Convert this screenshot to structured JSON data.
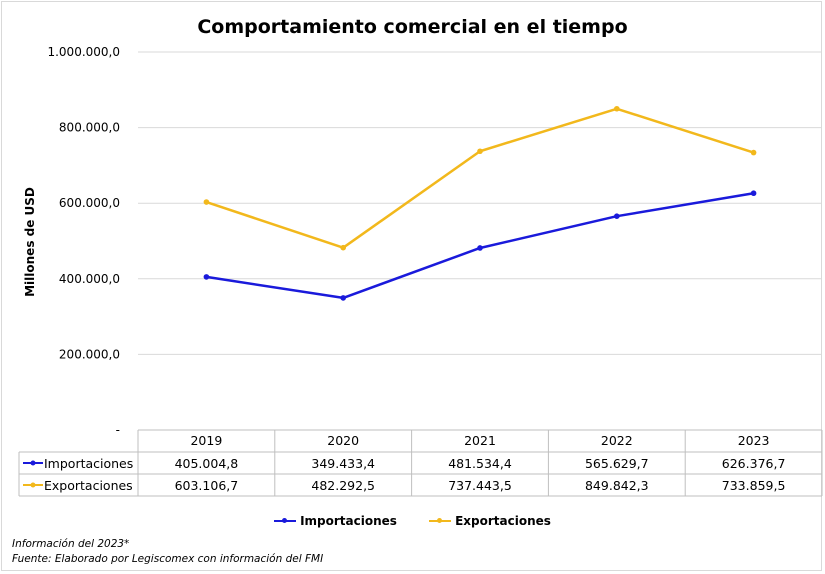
{
  "chart_data": {
    "type": "line",
    "title": "Comportamiento comercial en el tiempo",
    "ylabel": "Millones de USD",
    "xlabel": "",
    "ylim": [
      0,
      1000000
    ],
    "y_ticks": [
      {
        "value": 0,
        "label": "-"
      },
      {
        "value": 200000,
        "label": "200.000,0"
      },
      {
        "value": 400000,
        "label": "400.000,0"
      },
      {
        "value": 600000,
        "label": "600.000,0"
      },
      {
        "value": 800000,
        "label": "800.000,0"
      },
      {
        "value": 1000000,
        "label": "1.000.000,0"
      }
    ],
    "categories": [
      "2019",
      "2020",
      "2021",
      "2022",
      "2023"
    ],
    "grid": true,
    "legend_position": "bottom",
    "series": [
      {
        "name": "Importaciones",
        "color": "#1a1adb",
        "values": [
          405004.8,
          349433.4,
          481534.4,
          565629.7,
          626376.7
        ],
        "labels": [
          "405.004,8",
          "349.433,4",
          "481.534,4",
          "565.629,7",
          "626.376,7"
        ]
      },
      {
        "name": "Exportaciones",
        "color": "#f2b81c",
        "values": [
          603106.7,
          482292.5,
          737443.5,
          849842.3,
          733859.5
        ],
        "labels": [
          "603.106,7",
          "482.292,5",
          "737.443,5",
          "849.842,3",
          "733.859,5"
        ]
      }
    ]
  },
  "footer": {
    "note": "Información del 2023*",
    "source": "Fuente: Elaborado por Legiscomex con información del FMI"
  }
}
